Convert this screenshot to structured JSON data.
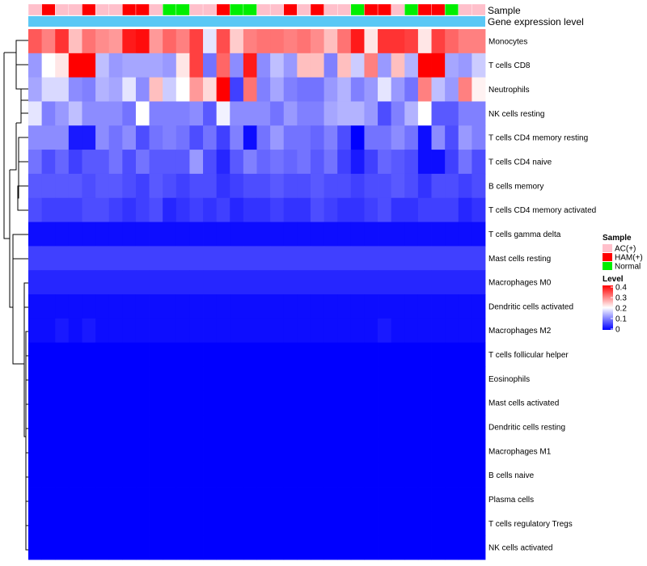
{
  "chart_data": {
    "type": "heatmap",
    "title": "",
    "annotation_labels": {
      "sample": "Sample",
      "expression": "Gene expression level"
    },
    "rows": [
      "Monocytes",
      "T cells CD8",
      "Neutrophils",
      "NK cells resting",
      "T cells CD4 memory resting",
      "T cells CD4 naive",
      "B cells memory",
      "T cells CD4 memory activated",
      "T cells gamma delta",
      "Mast cells resting",
      "Macrophages M0",
      "Dendritic cells activated",
      "Macrophages M2",
      "T cells follicular helper",
      "Eosinophils",
      "Mast cells activated",
      "Dendritic cells resting",
      "Macrophages M1",
      "B cells naive",
      "Plasma cells",
      "T cells regulatory  Tregs",
      "NK cells activated"
    ],
    "sample_groups": [
      "AC(+)",
      "HAM(+)",
      "AC(+)",
      "AC(+)",
      "HAM(+)",
      "AC(+)",
      "AC(+)",
      "HAM(+)",
      "HAM(+)",
      "AC(+)",
      "Normal",
      "Normal",
      "AC(+)",
      "AC(+)",
      "HAM(+)",
      "Normal",
      "Normal",
      "AC(+)",
      "AC(+)",
      "HAM(+)",
      "AC(+)",
      "HAM(+)",
      "AC(+)",
      "AC(+)",
      "Normal",
      "HAM(+)",
      "HAM(+)",
      "AC(+)",
      "Normal",
      "HAM(+)",
      "HAM(+)",
      "Normal",
      "AC(+)",
      "AC(+)"
    ],
    "values": [
      [
        0.33,
        0.3,
        0.36,
        0.25,
        0.31,
        0.29,
        0.28,
        0.38,
        0.39,
        0.28,
        0.32,
        0.3,
        0.35,
        0.18,
        0.34,
        0.24,
        0.3,
        0.31,
        0.31,
        0.3,
        0.31,
        0.29,
        0.25,
        0.31,
        0.38,
        0.22,
        0.36,
        0.36,
        0.35,
        0.22,
        0.35,
        0.32,
        0.3,
        0.3
      ],
      [
        0.12,
        0.2,
        0.22,
        0.4,
        0.4,
        0.15,
        0.12,
        0.13,
        0.13,
        0.13,
        0.12,
        0.22,
        0.35,
        0.09,
        0.32,
        0.11,
        0.38,
        0.11,
        0.15,
        0.12,
        0.25,
        0.25,
        0.1,
        0.25,
        0.16,
        0.3,
        0.12,
        0.25,
        0.14,
        0.4,
        0.4,
        0.13,
        0.12,
        0.16
      ],
      [
        0.13,
        0.17,
        0.17,
        0.11,
        0.1,
        0.14,
        0.13,
        0.18,
        0.11,
        0.25,
        0.16,
        0.2,
        0.28,
        0.23,
        0.4,
        0.05,
        0.31,
        0.1,
        0.13,
        0.1,
        0.09,
        0.09,
        0.12,
        0.14,
        0.1,
        0.12,
        0.18,
        0.12,
        0.09,
        0.3,
        0.15,
        0.12,
        0.3,
        0.21
      ],
      [
        0.18,
        0.1,
        0.12,
        0.15,
        0.11,
        0.11,
        0.11,
        0.09,
        0.2,
        0.1,
        0.1,
        0.1,
        0.11,
        0.07,
        0.19,
        0.11,
        0.11,
        0.11,
        0.09,
        0.12,
        0.1,
        0.1,
        0.13,
        0.14,
        0.14,
        0.12,
        0.06,
        0.1,
        0.14,
        0.2,
        0.07,
        0.07,
        0.1,
        0.1
      ],
      [
        0.11,
        0.11,
        0.11,
        0.02,
        0.02,
        0.11,
        0.09,
        0.11,
        0.06,
        0.09,
        0.1,
        0.09,
        0.06,
        0.09,
        0.05,
        0.1,
        0.01,
        0.09,
        0.12,
        0.09,
        0.09,
        0.08,
        0.1,
        0.06,
        0.0,
        0.09,
        0.09,
        0.11,
        0.09,
        0.01,
        0.11,
        0.06,
        0.12,
        0.1
      ],
      [
        0.09,
        0.06,
        0.08,
        0.05,
        0.07,
        0.07,
        0.09,
        0.06,
        0.09,
        0.07,
        0.07,
        0.07,
        0.12,
        0.06,
        0.03,
        0.07,
        0.1,
        0.08,
        0.09,
        0.08,
        0.09,
        0.07,
        0.09,
        0.05,
        0.02,
        0.05,
        0.08,
        0.07,
        0.06,
        0.01,
        0.01,
        0.05,
        0.09,
        0.06
      ],
      [
        0.07,
        0.07,
        0.07,
        0.07,
        0.06,
        0.07,
        0.07,
        0.06,
        0.05,
        0.07,
        0.06,
        0.05,
        0.06,
        0.06,
        0.04,
        0.05,
        0.06,
        0.06,
        0.07,
        0.06,
        0.06,
        0.07,
        0.06,
        0.06,
        0.05,
        0.06,
        0.06,
        0.07,
        0.06,
        0.04,
        0.06,
        0.06,
        0.05,
        0.06
      ],
      [
        0.06,
        0.05,
        0.05,
        0.05,
        0.06,
        0.06,
        0.05,
        0.04,
        0.05,
        0.06,
        0.03,
        0.04,
        0.05,
        0.04,
        0.05,
        0.03,
        0.04,
        0.04,
        0.05,
        0.04,
        0.04,
        0.06,
        0.05,
        0.04,
        0.04,
        0.05,
        0.06,
        0.04,
        0.04,
        0.05,
        0.05,
        0.05,
        0.03,
        0.04
      ],
      [
        0.01,
        0.01,
        0.01,
        0.01,
        0.01,
        0.01,
        0.01,
        0.01,
        0.01,
        0.01,
        0.01,
        0.01,
        0.01,
        0.01,
        0.01,
        0.01,
        0.01,
        0.01,
        0.01,
        0.01,
        0.01,
        0.01,
        0.01,
        0.01,
        0.01,
        0.01,
        0.01,
        0.01,
        0.01,
        0.01,
        0.01,
        0.01,
        0.01,
        0.01
      ],
      [
        0.05,
        0.05,
        0.05,
        0.05,
        0.05,
        0.05,
        0.05,
        0.05,
        0.05,
        0.05,
        0.05,
        0.05,
        0.05,
        0.05,
        0.05,
        0.05,
        0.05,
        0.05,
        0.05,
        0.05,
        0.05,
        0.05,
        0.05,
        0.05,
        0.05,
        0.05,
        0.05,
        0.05,
        0.05,
        0.05,
        0.05,
        0.05,
        0.05,
        0.05
      ],
      [
        0.03,
        0.03,
        0.03,
        0.03,
        0.03,
        0.03,
        0.03,
        0.03,
        0.03,
        0.03,
        0.03,
        0.03,
        0.03,
        0.03,
        0.03,
        0.03,
        0.03,
        0.03,
        0.03,
        0.03,
        0.03,
        0.03,
        0.03,
        0.03,
        0.03,
        0.03,
        0.03,
        0.03,
        0.03,
        0.03,
        0.03,
        0.03,
        0.03,
        0.03
      ],
      [
        0.01,
        0.01,
        0.01,
        0.01,
        0.01,
        0.01,
        0.01,
        0.01,
        0.01,
        0.01,
        0.01,
        0.01,
        0.01,
        0.01,
        0.01,
        0.01,
        0.01,
        0.01,
        0.01,
        0.01,
        0.01,
        0.01,
        0.01,
        0.01,
        0.01,
        0.01,
        0.01,
        0.01,
        0.01,
        0.01,
        0.01,
        0.01,
        0.01,
        0.01
      ],
      [
        0.01,
        0.01,
        0.02,
        0.01,
        0.02,
        0.01,
        0.01,
        0.01,
        0.01,
        0.01,
        0.01,
        0.01,
        0.01,
        0.01,
        0.01,
        0.01,
        0.01,
        0.01,
        0.01,
        0.01,
        0.01,
        0.01,
        0.01,
        0.01,
        0.01,
        0.01,
        0.02,
        0.01,
        0.01,
        0.01,
        0.01,
        0.01,
        0.01,
        0.01
      ],
      [
        0.0,
        0.0,
        0.0,
        0.0,
        0.0,
        0.0,
        0.0,
        0.0,
        0.0,
        0.0,
        0.0,
        0.0,
        0.0,
        0.0,
        0.0,
        0.0,
        0.0,
        0.0,
        0.0,
        0.0,
        0.0,
        0.0,
        0.0,
        0.0,
        0.0,
        0.0,
        0.0,
        0.0,
        0.0,
        0.0,
        0.0,
        0.0,
        0.0,
        0.0
      ],
      [
        0.0,
        0.0,
        0.0,
        0.0,
        0.0,
        0.0,
        0.0,
        0.0,
        0.0,
        0.0,
        0.0,
        0.0,
        0.0,
        0.0,
        0.0,
        0.0,
        0.0,
        0.0,
        0.0,
        0.0,
        0.0,
        0.0,
        0.0,
        0.0,
        0.0,
        0.0,
        0.0,
        0.0,
        0.0,
        0.0,
        0.0,
        0.0,
        0.0,
        0.0
      ],
      [
        0.0,
        0.0,
        0.0,
        0.0,
        0.0,
        0.0,
        0.0,
        0.0,
        0.0,
        0.0,
        0.0,
        0.0,
        0.0,
        0.0,
        0.0,
        0.0,
        0.0,
        0.0,
        0.0,
        0.0,
        0.0,
        0.0,
        0.0,
        0.0,
        0.0,
        0.0,
        0.0,
        0.0,
        0.0,
        0.0,
        0.0,
        0.0,
        0.0,
        0.0
      ],
      [
        0.0,
        0.0,
        0.0,
        0.0,
        0.0,
        0.0,
        0.0,
        0.0,
        0.0,
        0.0,
        0.0,
        0.0,
        0.0,
        0.0,
        0.0,
        0.0,
        0.0,
        0.0,
        0.0,
        0.0,
        0.0,
        0.0,
        0.0,
        0.0,
        0.0,
        0.0,
        0.0,
        0.0,
        0.0,
        0.0,
        0.0,
        0.0,
        0.0,
        0.0
      ],
      [
        0.0,
        0.0,
        0.0,
        0.0,
        0.0,
        0.0,
        0.0,
        0.0,
        0.0,
        0.0,
        0.0,
        0.0,
        0.0,
        0.0,
        0.0,
        0.0,
        0.0,
        0.0,
        0.0,
        0.0,
        0.0,
        0.0,
        0.0,
        0.0,
        0.0,
        0.0,
        0.0,
        0.0,
        0.0,
        0.0,
        0.0,
        0.0,
        0.0,
        0.0
      ],
      [
        0.0,
        0.0,
        0.0,
        0.0,
        0.0,
        0.0,
        0.0,
        0.0,
        0.0,
        0.0,
        0.0,
        0.0,
        0.0,
        0.0,
        0.0,
        0.0,
        0.0,
        0.0,
        0.0,
        0.0,
        0.0,
        0.0,
        0.0,
        0.0,
        0.0,
        0.0,
        0.0,
        0.0,
        0.0,
        0.0,
        0.0,
        0.0,
        0.0,
        0.0
      ],
      [
        0.0,
        0.0,
        0.0,
        0.0,
        0.0,
        0.0,
        0.0,
        0.0,
        0.0,
        0.0,
        0.0,
        0.0,
        0.0,
        0.0,
        0.0,
        0.0,
        0.0,
        0.0,
        0.0,
        0.0,
        0.0,
        0.0,
        0.0,
        0.0,
        0.0,
        0.0,
        0.0,
        0.0,
        0.0,
        0.0,
        0.0,
        0.0,
        0.0,
        0.0
      ],
      [
        0.0,
        0.0,
        0.0,
        0.0,
        0.0,
        0.0,
        0.0,
        0.0,
        0.0,
        0.0,
        0.0,
        0.0,
        0.0,
        0.0,
        0.0,
        0.0,
        0.0,
        0.0,
        0.0,
        0.0,
        0.0,
        0.0,
        0.0,
        0.0,
        0.0,
        0.0,
        0.0,
        0.0,
        0.0,
        0.0,
        0.0,
        0.0,
        0.0,
        0.0
      ],
      [
        0.0,
        0.0,
        0.0,
        0.0,
        0.0,
        0.0,
        0.0,
        0.0,
        0.0,
        0.0,
        0.0,
        0.0,
        0.0,
        0.0,
        0.0,
        0.0,
        0.0,
        0.0,
        0.0,
        0.0,
        0.0,
        0.0,
        0.0,
        0.0,
        0.0,
        0.0,
        0.0,
        0.0,
        0.0,
        0.0,
        0.0,
        0.0,
        0.0,
        0.0
      ]
    ],
    "legend": {
      "sample_title": "Sample",
      "groups": [
        {
          "name": "AC(+)",
          "color": "#ffc0cb"
        },
        {
          "name": "HAM(+)",
          "color": "#ff0000"
        },
        {
          "name": "Normal",
          "color": "#00ee00"
        }
      ],
      "level_title": "Level",
      "level_ticks": [
        "0.4",
        "0.3",
        "0.2",
        "0.1",
        "0"
      ],
      "level_range": [
        0,
        0.4
      ],
      "colors": {
        "low": "#0000ff",
        "mid": "#ffffff",
        "high": "#ff0000"
      }
    },
    "expression_bar_color": "#5bc8f5",
    "xlabel": "",
    "ylabel": ""
  }
}
